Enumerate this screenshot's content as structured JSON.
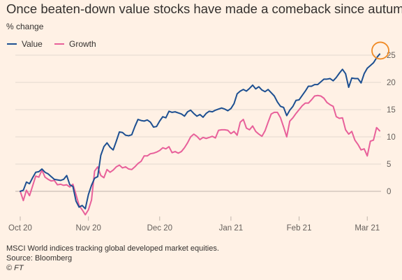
{
  "title": "Once beaten-down value stocks have made a comeback since autumn",
  "footnotes": {
    "note": "MSCI World indices tracking global developed market equities.",
    "source": "Source: Bloomberg",
    "credit": "© FT"
  },
  "colors": {
    "background": "#fff1e5",
    "value_series": "#1d4f91",
    "growth_series": "#e8609a",
    "highlight_circle": "#f08a24",
    "grid": "#e3d9cf"
  },
  "chart_data": {
    "type": "line",
    "title": "Once beaten-down value stocks have made a comeback since autumn",
    "ylabel": "% change",
    "xlabel": "",
    "ylim": [
      -5,
      25
    ],
    "y_ticks": [
      0,
      5,
      10,
      15,
      20,
      25
    ],
    "y_axis_side": "right",
    "grid": true,
    "legend_position": "top-left",
    "x_ticks": [
      {
        "day": 0,
        "label": "Oct 20"
      },
      {
        "day": 22,
        "label": "Nov 20"
      },
      {
        "day": 45,
        "label": "Dec 20"
      },
      {
        "day": 68,
        "label": "Jan 21"
      },
      {
        "day": 90,
        "label": "Feb 21"
      },
      {
        "day": 112,
        "label": "Mar 21"
      }
    ],
    "series": [
      {
        "name": "Value",
        "color": "#1d4f91",
        "points": [
          [
            0,
            0
          ],
          [
            1,
            0.2
          ],
          [
            2,
            1.7
          ],
          [
            3,
            1.4
          ],
          [
            4,
            2.5
          ],
          [
            5,
            3.5
          ],
          [
            6,
            3.6
          ],
          [
            7,
            4.1
          ],
          [
            8,
            3.5
          ],
          [
            9,
            3.2
          ],
          [
            10,
            2.7
          ],
          [
            11,
            2.2
          ],
          [
            12,
            2.1
          ],
          [
            13,
            2
          ],
          [
            14,
            2.2
          ],
          [
            15,
            2.9
          ],
          [
            16,
            1.2
          ],
          [
            17,
            0.9
          ],
          [
            18,
            -1.8
          ],
          [
            19,
            -2.9
          ],
          [
            20,
            -2.6
          ],
          [
            21,
            -3.2
          ],
          [
            22,
            -0.6
          ],
          [
            23,
            1.1
          ],
          [
            24,
            2.4
          ],
          [
            25,
            2.7
          ],
          [
            26,
            6.6
          ],
          [
            27,
            8.2
          ],
          [
            28,
            8.9
          ],
          [
            29,
            8.1
          ],
          [
            30,
            7.6
          ],
          [
            31,
            9.2
          ],
          [
            32,
            10.9
          ],
          [
            33,
            10.8
          ],
          [
            34,
            10.3
          ],
          [
            35,
            10.2
          ],
          [
            36,
            10.4
          ],
          [
            37,
            11.9
          ],
          [
            38,
            13.2
          ],
          [
            39,
            13
          ],
          [
            40,
            12.9
          ],
          [
            41,
            13.1
          ],
          [
            42,
            12.7
          ],
          [
            43,
            11.8
          ],
          [
            44,
            11.9
          ],
          [
            45,
            12.9
          ],
          [
            46,
            13.7
          ],
          [
            47,
            13.5
          ],
          [
            48,
            14.7
          ],
          [
            49,
            14.5
          ],
          [
            50,
            14.6
          ],
          [
            51,
            14.4
          ],
          [
            52,
            14.2
          ],
          [
            53,
            13.8
          ],
          [
            54,
            14.6
          ],
          [
            55,
            14.9
          ],
          [
            56,
            14.3
          ],
          [
            57,
            13.8
          ],
          [
            58,
            14.1
          ],
          [
            59,
            13.6
          ],
          [
            60,
            14.3
          ],
          [
            61,
            14.7
          ],
          [
            62,
            14.6
          ],
          [
            63,
            14.9
          ],
          [
            64,
            15.1
          ],
          [
            65,
            15.3
          ],
          [
            66,
            15.1
          ],
          [
            67,
            14.8
          ],
          [
            68,
            15.2
          ],
          [
            69,
            16.1
          ],
          [
            70,
            17.9
          ],
          [
            71,
            18.4
          ],
          [
            72,
            18.7
          ],
          [
            73,
            18.4
          ],
          [
            74,
            18.9
          ],
          [
            75,
            19.5
          ],
          [
            76,
            18.8
          ],
          [
            77,
            19.2
          ],
          [
            78,
            18.6
          ],
          [
            79,
            18.3
          ],
          [
            80,
            18.7
          ],
          [
            81,
            18.1
          ],
          [
            82,
            17.5
          ],
          [
            83,
            16.4
          ],
          [
            84,
            15.6
          ],
          [
            85,
            15.4
          ],
          [
            86,
            13.9
          ],
          [
            87,
            14.9
          ],
          [
            88,
            15.6
          ],
          [
            89,
            16.7
          ],
          [
            90,
            16.8
          ],
          [
            91,
            17.6
          ],
          [
            92,
            18.4
          ],
          [
            93,
            19.3
          ],
          [
            94,
            19.3
          ],
          [
            95,
            19.6
          ],
          [
            96,
            19.6
          ],
          [
            97,
            20.1
          ],
          [
            98,
            20.6
          ],
          [
            99,
            20.6
          ],
          [
            100,
            20.7
          ],
          [
            101,
            20.3
          ],
          [
            102,
            20.9
          ],
          [
            103,
            21.7
          ],
          [
            104,
            22.4
          ],
          [
            105,
            21.6
          ],
          [
            106,
            19.1
          ],
          [
            107,
            20.8
          ],
          [
            108,
            20.7
          ],
          [
            109,
            20.7
          ],
          [
            110,
            19.9
          ],
          [
            111,
            21.6
          ],
          [
            112,
            22.6
          ],
          [
            113,
            23.1
          ],
          [
            114,
            23.6
          ],
          [
            115,
            24.5
          ],
          [
            116,
            25.2
          ]
        ]
      },
      {
        "name": "Growth",
        "color": "#e8609a",
        "points": [
          [
            0,
            0
          ],
          [
            1,
            -1.7
          ],
          [
            2,
            0.2
          ],
          [
            3,
            -0.8
          ],
          [
            4,
            1
          ],
          [
            5,
            2.8
          ],
          [
            6,
            2.6
          ],
          [
            7,
            3.9
          ],
          [
            8,
            2.6
          ],
          [
            9,
            2.2
          ],
          [
            10,
            1.9
          ],
          [
            11,
            2
          ],
          [
            12,
            1.2
          ],
          [
            13,
            1.3
          ],
          [
            14,
            1.1
          ],
          [
            15,
            1.2
          ],
          [
            16,
            0.8
          ],
          [
            17,
            1.3
          ],
          [
            18,
            -0.6
          ],
          [
            19,
            -2.6
          ],
          [
            20,
            -3.4
          ],
          [
            21,
            -4.3
          ],
          [
            22,
            -3.4
          ],
          [
            23,
            -1.6
          ],
          [
            24,
            3.7
          ],
          [
            25,
            4.5
          ],
          [
            26,
            2.9
          ],
          [
            27,
            2.5
          ],
          [
            28,
            4
          ],
          [
            29,
            3.5
          ],
          [
            30,
            3.9
          ],
          [
            31,
            4.5
          ],
          [
            32,
            4.8
          ],
          [
            33,
            4.3
          ],
          [
            34,
            4.5
          ],
          [
            35,
            4.1
          ],
          [
            36,
            4
          ],
          [
            37,
            4.5
          ],
          [
            38,
            5.1
          ],
          [
            39,
            5.5
          ],
          [
            40,
            6.5
          ],
          [
            41,
            6.5
          ],
          [
            42,
            6.9
          ],
          [
            43,
            7
          ],
          [
            44,
            7.2
          ],
          [
            45,
            7.5
          ],
          [
            46,
            8
          ],
          [
            47,
            7.8
          ],
          [
            48,
            8.2
          ],
          [
            49,
            7.1
          ],
          [
            50,
            7.3
          ],
          [
            51,
            7
          ],
          [
            52,
            7.3
          ],
          [
            53,
            8
          ],
          [
            54,
            8.9
          ],
          [
            55,
            10
          ],
          [
            56,
            10.5
          ],
          [
            57,
            10.1
          ],
          [
            58,
            9.5
          ],
          [
            59,
            9.9
          ],
          [
            60,
            9.7
          ],
          [
            61,
            9.9
          ],
          [
            62,
            10.1
          ],
          [
            63,
            9.8
          ],
          [
            64,
            11.2
          ],
          [
            65,
            11.3
          ],
          [
            66,
            11.3
          ],
          [
            67,
            11.2
          ],
          [
            68,
            10.6
          ],
          [
            69,
            11
          ],
          [
            70,
            10.3
          ],
          [
            71,
            12.7
          ],
          [
            72,
            13.2
          ],
          [
            73,
            11.6
          ],
          [
            74,
            11.3
          ],
          [
            75,
            12
          ],
          [
            76,
            11
          ],
          [
            77,
            10.5
          ],
          [
            78,
            10.1
          ],
          [
            79,
            11.1
          ],
          [
            80,
            12.7
          ],
          [
            81,
            14.2
          ],
          [
            82,
            14.5
          ],
          [
            83,
            14.5
          ],
          [
            84,
            13.5
          ],
          [
            85,
            11.8
          ],
          [
            86,
            10
          ],
          [
            87,
            12.9
          ],
          [
            88,
            13.5
          ],
          [
            89,
            14.3
          ],
          [
            90,
            15
          ],
          [
            91,
            15.7
          ],
          [
            92,
            16.2
          ],
          [
            93,
            16.2
          ],
          [
            94,
            16.8
          ],
          [
            95,
            17.5
          ],
          [
            96,
            17.6
          ],
          [
            97,
            17.5
          ],
          [
            98,
            17.1
          ],
          [
            99,
            16.3
          ],
          [
            100,
            15.9
          ],
          [
            101,
            15.6
          ],
          [
            102,
            13.7
          ],
          [
            103,
            13.4
          ],
          [
            104,
            13.5
          ],
          [
            105,
            11.3
          ],
          [
            106,
            10.5
          ],
          [
            107,
            11
          ],
          [
            108,
            9.4
          ],
          [
            109,
            8.6
          ],
          [
            110,
            7.6
          ],
          [
            111,
            7.8
          ],
          [
            112,
            6.5
          ],
          [
            113,
            9.2
          ],
          [
            114,
            9.4
          ],
          [
            115,
            11.7
          ],
          [
            116,
            11.1
          ]
        ]
      }
    ],
    "annotations": [
      {
        "type": "circle",
        "target_series": "Value",
        "day": 116,
        "value": 25.2
      }
    ]
  }
}
